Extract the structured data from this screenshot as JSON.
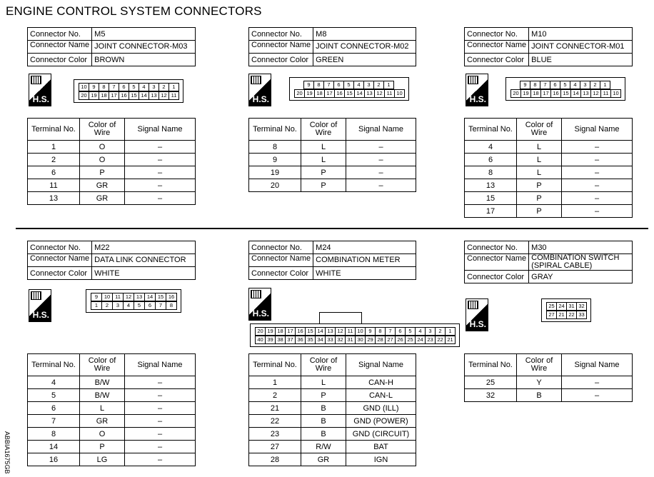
{
  "title": "ENGINE CONTROL SYSTEM CONNECTORS",
  "labels": {
    "connector_no": "Connector No.",
    "connector_name": "Connector Name",
    "connector_color": "Connector Color",
    "terminal_no": "Terminal No.",
    "color_of_wire": "Color of Wire",
    "signal_name": "Signal Name",
    "hs": "H.S."
  },
  "side_code": "ABBIA1675GB",
  "connectors": [
    {
      "no": "M5",
      "name": "JOINT CONNECTOR-M03",
      "color": "BROWN",
      "pins": [
        [
          "10",
          "9",
          "8",
          "7",
          "6",
          "5",
          "4",
          "3",
          "2",
          "1"
        ],
        [
          "20",
          "19",
          "18",
          "17",
          "16",
          "15",
          "14",
          "13",
          "12",
          "11"
        ]
      ],
      "terminals": [
        {
          "t": "1",
          "w": "O",
          "s": "–"
        },
        {
          "t": "2",
          "w": "O",
          "s": "–"
        },
        {
          "t": "6",
          "w": "P",
          "s": "–"
        },
        {
          "t": "11",
          "w": "GR",
          "s": "–"
        },
        {
          "t": "13",
          "w": "GR",
          "s": "–"
        }
      ]
    },
    {
      "no": "M8",
      "name": "JOINT CONNECTOR-M02",
      "color": "GREEN",
      "pins": [
        [
          "9",
          "8",
          "7",
          "6",
          "5",
          "4",
          "3",
          "2",
          "1"
        ],
        [
          "20",
          "19",
          "18",
          "17",
          "16",
          "15",
          "14",
          "13",
          "12",
          "11",
          "10"
        ]
      ],
      "terminals": [
        {
          "t": "8",
          "w": "L",
          "s": "–"
        },
        {
          "t": "9",
          "w": "L",
          "s": "–"
        },
        {
          "t": "19",
          "w": "P",
          "s": "–"
        },
        {
          "t": "20",
          "w": "P",
          "s": "–"
        }
      ]
    },
    {
      "no": "M10",
      "name": "JOINT CONNECTOR-M01",
      "color": "BLUE",
      "pins": [
        [
          "9",
          "8",
          "7",
          "6",
          "5",
          "4",
          "3",
          "2",
          "1"
        ],
        [
          "20",
          "19",
          "18",
          "17",
          "16",
          "15",
          "14",
          "13",
          "12",
          "11",
          "10"
        ]
      ],
      "terminals": [
        {
          "t": "4",
          "w": "L",
          "s": "–"
        },
        {
          "t": "6",
          "w": "L",
          "s": "–"
        },
        {
          "t": "8",
          "w": "L",
          "s": "–"
        },
        {
          "t": "13",
          "w": "P",
          "s": "–"
        },
        {
          "t": "15",
          "w": "P",
          "s": "–"
        },
        {
          "t": "17",
          "w": "P",
          "s": "–"
        }
      ]
    },
    {
      "no": "M22",
      "name": "DATA LINK CONNECTOR",
      "color": "WHITE",
      "pins": [
        [
          "9",
          "10",
          "11",
          "12",
          "13",
          "14",
          "15",
          "16"
        ],
        [
          "1",
          "2",
          "3",
          "4",
          "5",
          "6",
          "7",
          "8"
        ]
      ],
      "terminals": [
        {
          "t": "4",
          "w": "B/W",
          "s": "–"
        },
        {
          "t": "5",
          "w": "B/W",
          "s": "–"
        },
        {
          "t": "6",
          "w": "L",
          "s": "–"
        },
        {
          "t": "7",
          "w": "GR",
          "s": "–"
        },
        {
          "t": "8",
          "w": "O",
          "s": "–"
        },
        {
          "t": "14",
          "w": "P",
          "s": "–"
        },
        {
          "t": "16",
          "w": "LG",
          "s": "–"
        }
      ]
    },
    {
      "no": "M24",
      "name": "COMBINATION METER",
      "color": "WHITE",
      "pins": [
        [
          "20",
          "19",
          "18",
          "17",
          "16",
          "15",
          "14",
          "13",
          "12",
          "11",
          "10",
          "9",
          "8",
          "7",
          "6",
          "5",
          "4",
          "3",
          "2",
          "1"
        ],
        [
          "40",
          "39",
          "38",
          "37",
          "36",
          "35",
          "34",
          "33",
          "32",
          "31",
          "30",
          "29",
          "28",
          "27",
          "26",
          "25",
          "24",
          "23",
          "22",
          "21"
        ]
      ],
      "terminals": [
        {
          "t": "1",
          "w": "L",
          "s": "CAN-H"
        },
        {
          "t": "2",
          "w": "P",
          "s": "CAN-L"
        },
        {
          "t": "21",
          "w": "B",
          "s": "GND (ILL)"
        },
        {
          "t": "22",
          "w": "B",
          "s": "GND (POWER)"
        },
        {
          "t": "23",
          "w": "B",
          "s": "GND (CIRCUIT)"
        },
        {
          "t": "27",
          "w": "R/W",
          "s": "BAT"
        },
        {
          "t": "28",
          "w": "GR",
          "s": "IGN"
        }
      ]
    },
    {
      "no": "M30",
      "name": "COMBINATION SWITCH (SPIRAL CABLE)",
      "color": "GRAY",
      "pins": [
        [
          "25",
          "24",
          "31",
          "32"
        ],
        [
          "27",
          "21",
          "22",
          "33"
        ]
      ],
      "terminals": [
        {
          "t": "25",
          "w": "Y",
          "s": "–"
        },
        {
          "t": "32",
          "w": "B",
          "s": "–"
        }
      ]
    }
  ]
}
